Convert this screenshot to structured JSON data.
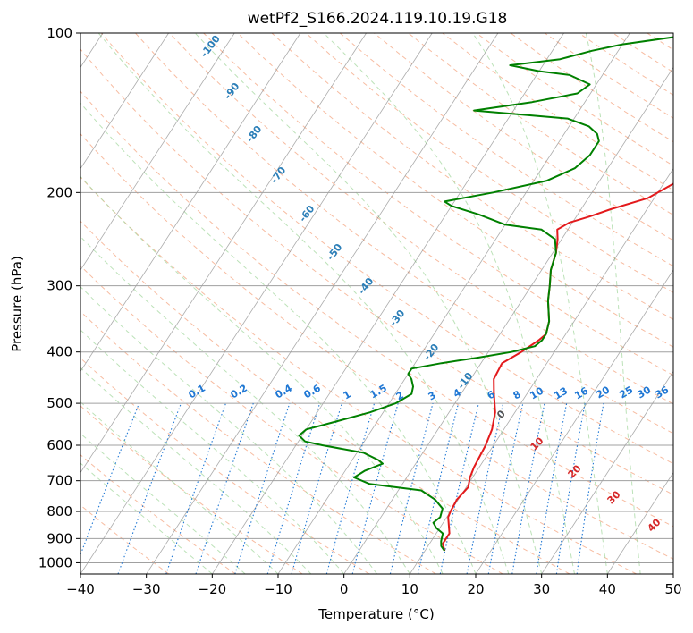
{
  "chart_data": {
    "type": "line",
    "title": "wetPf2_S166.2024.119.10.19.G18",
    "xlabel": "Temperature (°C)",
    "ylabel": "Pressure (hPa)",
    "xlim": [
      -40,
      50
    ],
    "ylim": [
      1050,
      100
    ],
    "y_scale": "log",
    "grid": true,
    "x_ticks": [
      "−40",
      "−30",
      "−20",
      "−10",
      "0",
      "10",
      "20",
      "30",
      "40",
      "50"
    ],
    "x_tick_values": [
      -40,
      -30,
      -20,
      -10,
      0,
      10,
      20,
      30,
      40,
      50
    ],
    "y_ticks": [
      "100",
      "200",
      "300",
      "400",
      "500",
      "600",
      "700",
      "800",
      "900",
      "1000"
    ],
    "y_tick_values": [
      100,
      200,
      300,
      400,
      500,
      600,
      700,
      800,
      900,
      1000
    ],
    "series": [
      {
        "color": "#e31a1c",
        "p": [
          950,
          920,
          880,
          820,
          800,
          760,
          720,
          690,
          660,
          630,
          600,
          560,
          520,
          480,
          450,
          420,
          400,
          380,
          370,
          350,
          320,
          300,
          280,
          260,
          245,
          235,
          228,
          222,
          215,
          205,
          195,
          180,
          165,
          155,
          145,
          135,
          128,
          122,
          115,
          108,
          100
        ],
        "t": [
          13,
          12,
          12,
          10.2,
          10,
          9.8,
          10.3,
          9.6,
          9.2,
          9.0,
          8.8,
          8.2,
          7.0,
          5.0,
          3.5,
          3.2,
          5.0,
          6.5,
          7.0,
          6.2,
          4.0,
          2.8,
          1.4,
          0.5,
          -0.6,
          -1.6,
          -0.5,
          2.0,
          4.5,
          9.0,
          11.0,
          14.0,
          16.0,
          17.5,
          17.5,
          18.0,
          20.0,
          22.0,
          24.5,
          25.0,
          26.0
        ]
      },
      {
        "color": "#008000",
        "p": [
          950,
          930,
          910,
          880,
          860,
          840,
          820,
          790,
          760,
          730,
          710,
          690,
          670,
          650,
          640,
          620,
          600,
          590,
          575,
          560,
          550,
          540,
          520,
          500,
          480,
          465,
          450,
          440,
          430,
          420,
          410,
          400,
          390,
          380,
          370,
          350,
          320,
          300,
          280,
          260,
          245,
          235,
          230,
          220,
          212,
          208,
          200,
          190,
          180,
          170,
          160,
          155,
          150,
          145,
          140,
          135,
          130,
          125,
          120,
          118,
          115,
          112,
          108,
          105,
          100
        ],
        "td": [
          13,
          12,
          11.5,
          11,
          9.5,
          8.5,
          9,
          8.5,
          6.5,
          3.5,
          -5,
          -8,
          -7,
          -5,
          -6,
          -9,
          -16,
          -19,
          -20.5,
          -20,
          -18,
          -16,
          -12,
          -9,
          -7.5,
          -8,
          -9,
          -10,
          -10,
          -6,
          -1,
          3.5,
          6.5,
          7.0,
          7.0,
          6.2,
          4.0,
          2.8,
          1.4,
          0.5,
          -1,
          -4,
          -10,
          -15,
          -20,
          -21.5,
          -15,
          -8,
          -5,
          -4,
          -4,
          -5,
          -7,
          -11,
          -26,
          -18,
          -12,
          -11,
          -15,
          -20,
          -25,
          -18,
          -14,
          -10,
          1
        ]
      }
    ],
    "dry_adiabat_labels": [
      "-100",
      "-90",
      "-80",
      "-70",
      "-60",
      "-50",
      "-40",
      "-30",
      "-20",
      "-10"
    ],
    "mixing_ratio_labels": [
      "0.1",
      "0.2",
      "0.4",
      "0.6",
      "1",
      "1.5",
      "2",
      "3",
      "4",
      "6",
      "8",
      "10",
      "13",
      "16",
      "20",
      "25",
      "30",
      "36"
    ],
    "moist_adiabat_labels": [
      "0",
      "10",
      "20",
      "30",
      "40"
    ],
    "colors": {
      "isotherm": "#7f7f7f",
      "isobar": "#a0a0a0",
      "dry_adiabat": "#f4a582",
      "moist_adiabat": "#a6d8a0",
      "mixing_ratio": "#1f77d4",
      "label_blue": "#2c7fb8",
      "label_red": "#d62728",
      "label_grey": "#555555",
      "boundary": "#d2b48c"
    }
  }
}
